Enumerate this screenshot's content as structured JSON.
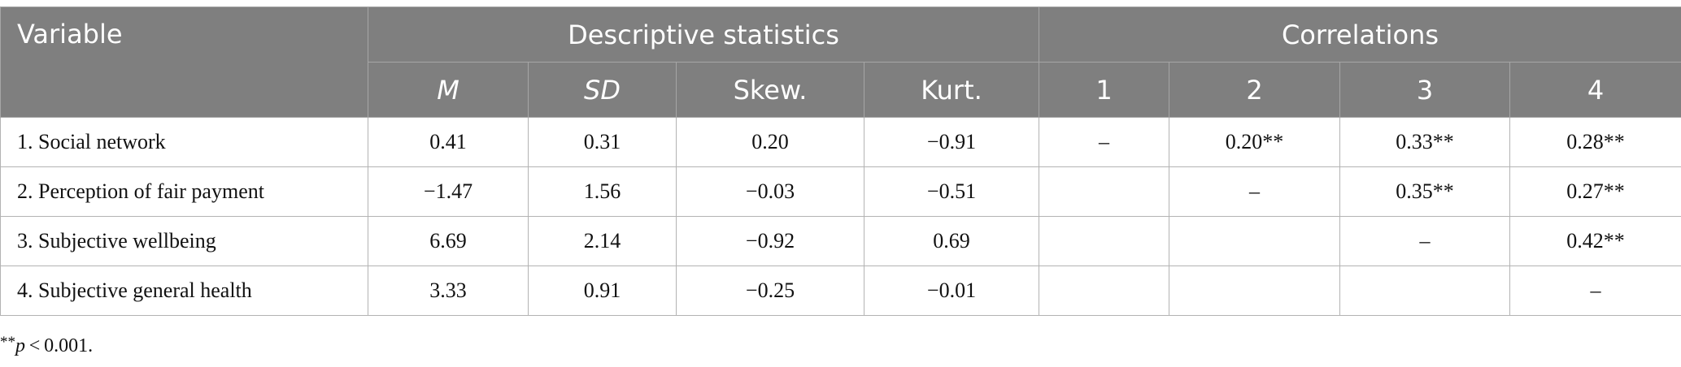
{
  "header": {
    "variable": "Variable",
    "descriptive": "Descriptive statistics",
    "correlations": "Correlations",
    "sub": [
      "M",
      "SD",
      "Skew.",
      "Kurt.",
      "1",
      "2",
      "3",
      "4"
    ]
  },
  "rows": [
    {
      "label": "1. Social network",
      "cells": [
        "0.41",
        "0.31",
        "0.20",
        "−0.91",
        "–",
        "0.20**",
        "0.33**",
        "0.28**"
      ]
    },
    {
      "label": "2. Perception of fair payment",
      "cells": [
        "−1.47",
        "1.56",
        "−0.03",
        "−0.51",
        "",
        "–",
        "0.35**",
        "0.27**"
      ]
    },
    {
      "label": "3. Subjective wellbeing",
      "cells": [
        "6.69",
        "2.14",
        "−0.92",
        "0.69",
        "",
        "",
        "–",
        "0.42**"
      ]
    },
    {
      "label": "4. Subjective general health",
      "cells": [
        "3.33",
        "0.91",
        "−0.25",
        "−0.01",
        "",
        "",
        "",
        "–"
      ]
    }
  ],
  "footnote": {
    "stars": "**",
    "pvar": "p",
    "text": " < 0.001."
  }
}
